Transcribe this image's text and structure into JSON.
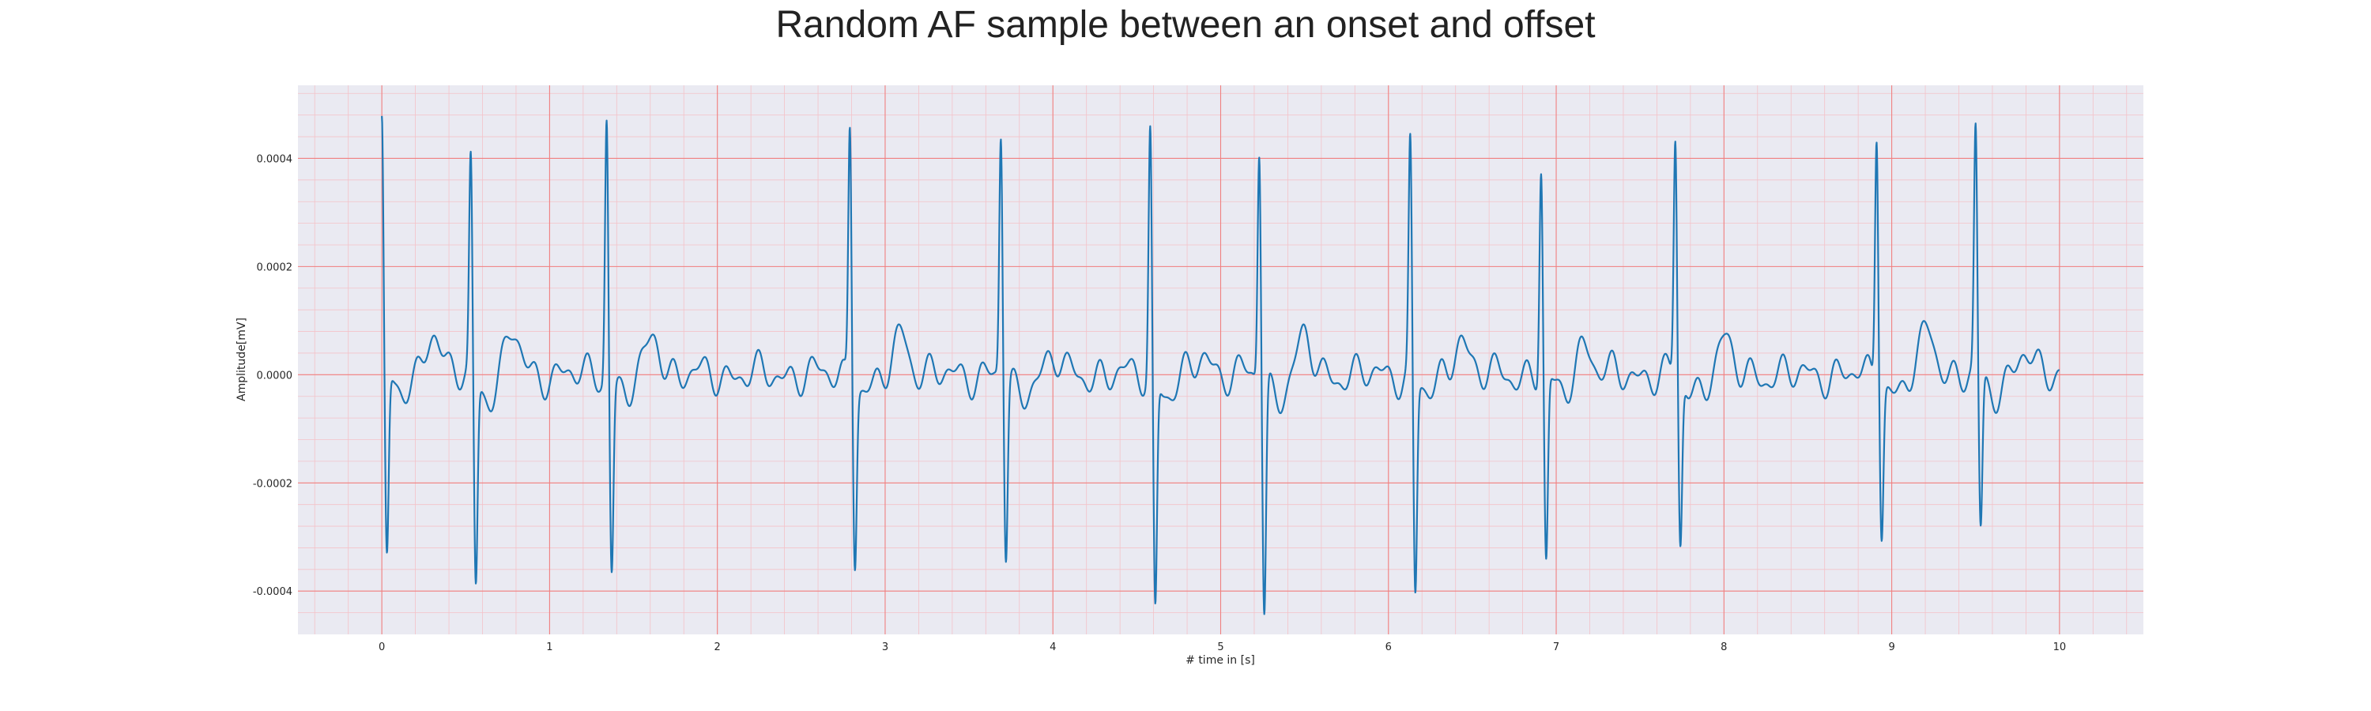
{
  "chart_data": {
    "type": "line",
    "title": "Random AF sample between an onset and offset",
    "xlabel": "# time in [s]",
    "ylabel": "Amplitude[mV]",
    "xlim": [
      -0.5,
      10.5
    ],
    "ylim": [
      -0.00048,
      0.000535
    ],
    "xticks": [
      0,
      1,
      2,
      3,
      4,
      5,
      6,
      7,
      8,
      9,
      10
    ],
    "xtick_labels": [
      "0",
      "1",
      "2",
      "3",
      "4",
      "5",
      "6",
      "7",
      "8",
      "9",
      "10"
    ],
    "yticks": [
      -0.0004,
      -0.0002,
      0,
      0.0002,
      0.0004
    ],
    "ytick_labels": [
      "-0.0004",
      "-0.0002",
      "0.0000",
      "0.0002",
      "0.0004"
    ],
    "grid": true,
    "colors": {
      "line": "#1f77b4",
      "plot_background": "#eaeaf2",
      "major_grid": "#f08080",
      "minor_grid": "#f4c2c8"
    },
    "series": [
      {
        "beats": [
          {
            "t": 0.0,
            "r": 0.00047,
            "s": -0.00035
          },
          {
            "t": 0.53,
            "r": 0.0004,
            "s": -0.00038
          },
          {
            "t": 1.34,
            "r": 0.00049,
            "s": -0.00035
          },
          {
            "t": 2.79,
            "r": 0.00048,
            "s": -0.00032
          },
          {
            "t": 3.69,
            "r": 0.00045,
            "s": -0.00033
          },
          {
            "t": 4.58,
            "r": 0.00046,
            "s": -0.00043
          },
          {
            "t": 5.23,
            "r": 0.00043,
            "s": -0.00043
          },
          {
            "t": 6.13,
            "r": 0.00043,
            "s": -0.0004
          },
          {
            "t": 6.91,
            "r": 0.00039,
            "s": -0.00035
          },
          {
            "t": 7.71,
            "r": 0.00044,
            "s": -0.00031
          },
          {
            "t": 8.91,
            "r": 0.00047,
            "s": -0.00027
          },
          {
            "t": 9.5,
            "r": 0.00045,
            "s": -0.00029
          }
        ],
        "waves": [
          {
            "t": 0.3,
            "a": 8.5e-05
          },
          {
            "t": 0.78,
            "a": 8e-05
          },
          {
            "t": 1.62,
            "a": 7.5e-05
          },
          {
            "t": 3.1,
            "a": 8e-05
          },
          {
            "t": 4.0,
            "a": 3e-05
          },
          {
            "t": 4.9,
            "a": 4e-05
          },
          {
            "t": 5.5,
            "a": 6.5e-05
          },
          {
            "t": 6.43,
            "a": 7.5e-05
          },
          {
            "t": 7.17,
            "a": 6e-05
          },
          {
            "t": 8.0,
            "a": 6e-05
          },
          {
            "t": 9.22,
            "a": 8.5e-05
          },
          {
            "t": 9.78,
            "a": 4.5e-05
          }
        ],
        "t_end": 10.0
      }
    ]
  }
}
